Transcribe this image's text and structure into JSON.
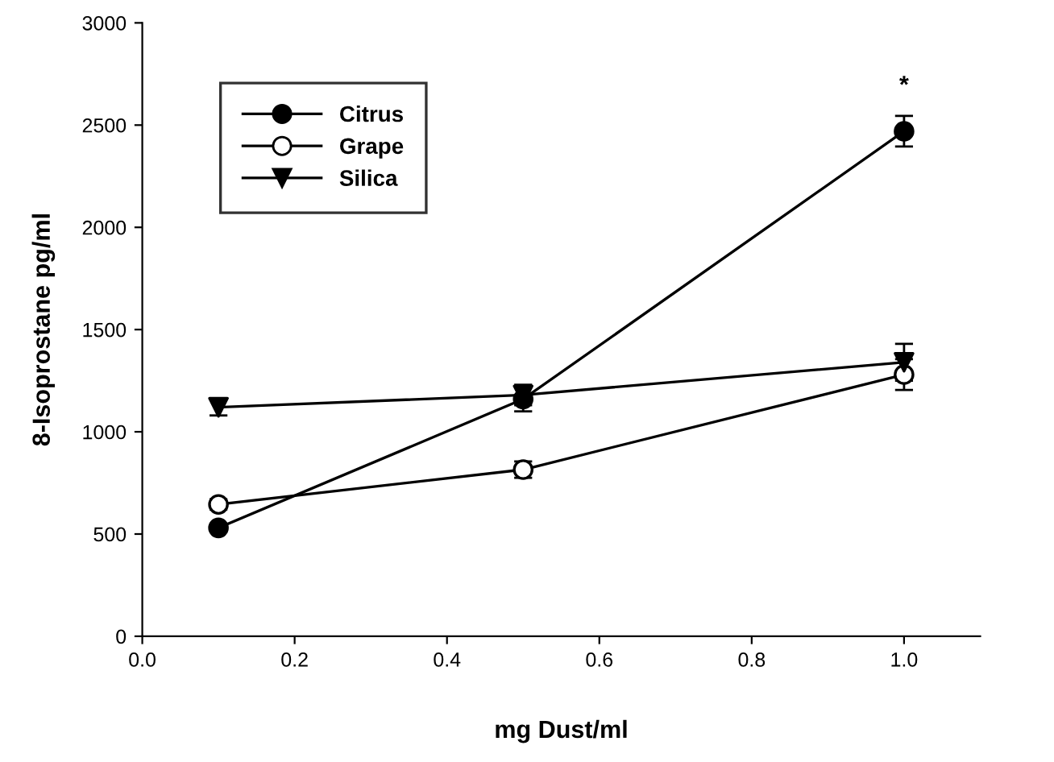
{
  "chart_data": {
    "type": "line",
    "xlabel": "mg Dust/ml",
    "ylabel": "8-Isoprostane pg/ml",
    "x": [
      0.1,
      0.5,
      1.0
    ],
    "series": [
      {
        "name": "Citrus",
        "color": "#000000",
        "marker": "circle",
        "values": [
          530,
          1160,
          2470
        ],
        "errors": [
          20,
          60,
          75
        ]
      },
      {
        "name": "Grape",
        "color": "#000000",
        "marker": "circle",
        "colors": [
          "#ffffff",
          "#ffffff",
          "#ffffff"
        ],
        "values": [
          645,
          815,
          1280
        ],
        "errors": [
          25,
          40,
          75
        ]
      },
      {
        "name": "Silica",
        "color": "#000000",
        "marker": "triangle",
        "values": [
          1120,
          1180,
          1340
        ],
        "errors": [
          40,
          50,
          90
        ]
      }
    ],
    "xlim": [
      0,
      1.1
    ],
    "xticks": [
      {
        "value": 0,
        "label": "0.0"
      },
      {
        "value": 0.2,
        "label": "0.2"
      },
      {
        "value": 0.4,
        "label": "0.4"
      },
      {
        "value": 0.6,
        "label": "0.6"
      },
      {
        "value": 0.8,
        "label": "0.8"
      },
      {
        "value": 1,
        "label": "1.0"
      }
    ],
    "ylim": [
      0,
      3000
    ],
    "yticks": [
      0,
      500,
      1000,
      1500,
      2000,
      2500,
      3000
    ],
    "annotations": [
      {
        "text": "*",
        "x": 1.0,
        "y": 2470
      }
    ],
    "grid": false,
    "legend": "top left",
    "line_style": "solid"
  }
}
